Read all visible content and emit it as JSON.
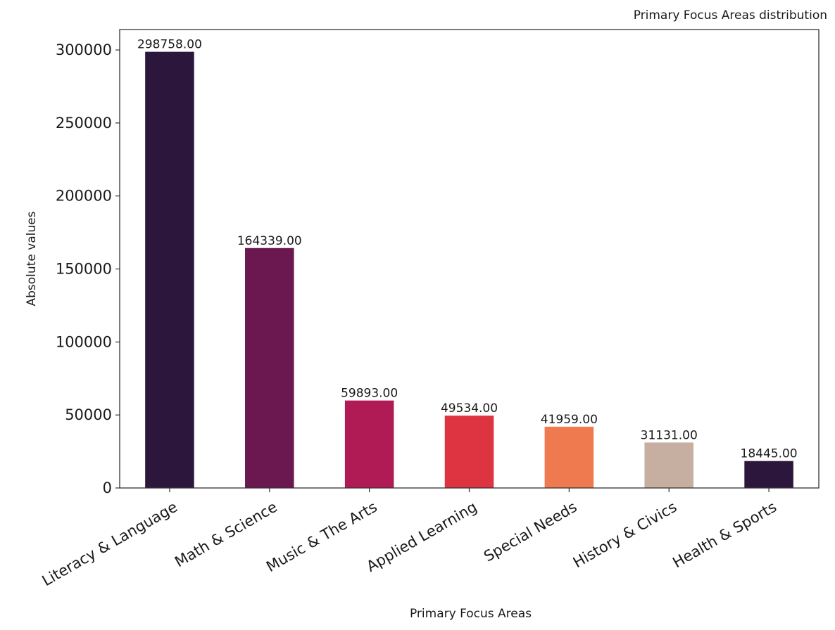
{
  "chart_data": {
    "type": "bar",
    "title": "Primary Focus Areas distribution",
    "xlabel": "Primary Focus Areas",
    "ylabel": "Absolute values",
    "categories": [
      "Literacy & Language",
      "Math & Science",
      "Music & The Arts",
      "Applied Learning",
      "Special Needs",
      "History & Civics",
      "Health & Sports"
    ],
    "values": [
      298758,
      164339,
      59893,
      49534,
      41959,
      31131,
      18445
    ],
    "value_labels": [
      "298758.00",
      "164339.00",
      "59893.00",
      "49534.00",
      "41959.00",
      "31131.00",
      "18445.00"
    ],
    "colors": [
      "#2d163b",
      "#6c1850",
      "#b01a55",
      "#de3340",
      "#ef7a50",
      "#c6aea0",
      "#2d163b"
    ],
    "ylim": [
      0,
      314000
    ],
    "yticks": [
      0,
      50000,
      100000,
      150000,
      200000,
      250000,
      300000
    ],
    "ytick_labels": [
      "0",
      "50000",
      "100000",
      "150000",
      "200000",
      "250000",
      "300000"
    ],
    "grid": false,
    "legend": "none"
  }
}
